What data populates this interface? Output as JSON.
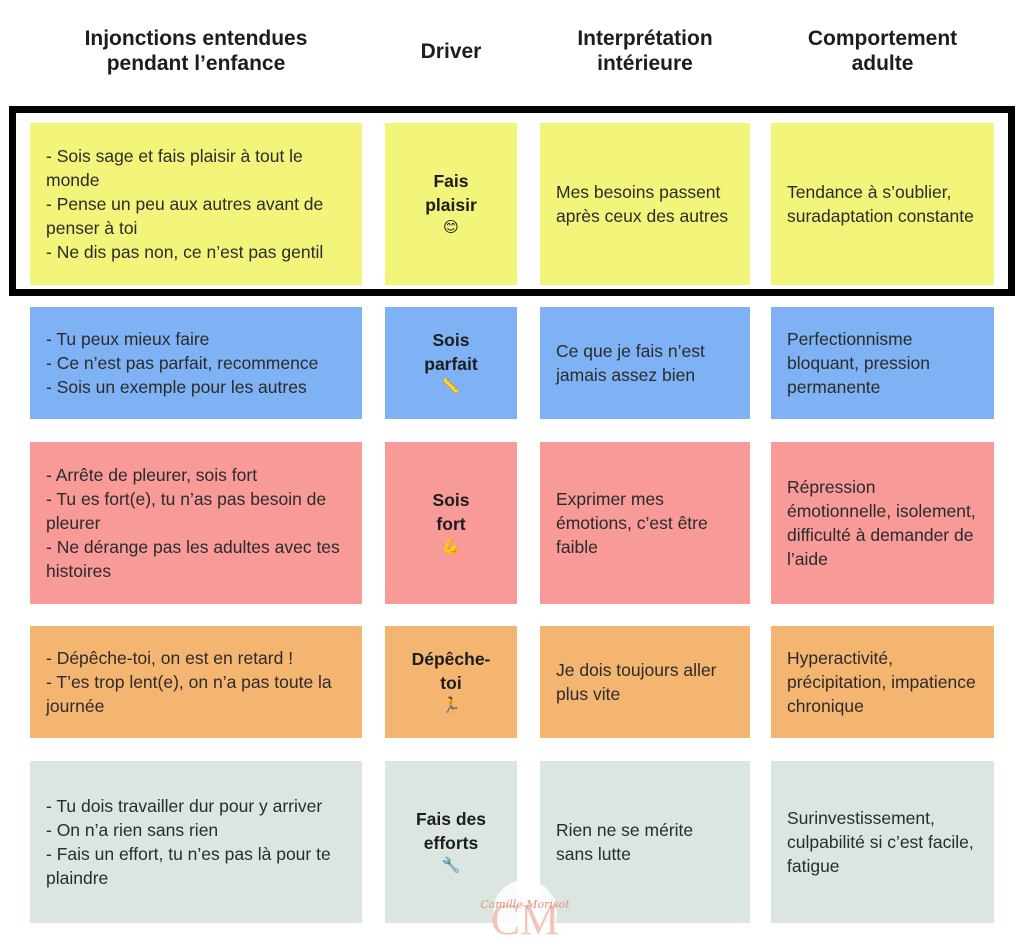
{
  "headers": [
    "Injonctions entendues\npendant l’enfance",
    "Driver",
    "Interprétation\nintérieure",
    "Comportement\nadulte"
  ],
  "rows": [
    {
      "color": "#f2f57a",
      "injunctions": "- Sois sage et fais plaisir à tout le monde\n- Pense un peu aux autres avant de penser à toi\n- Ne dis pas non, ce n’est pas gentil",
      "driver": "Fais\nplaisir",
      "driver_icon": "😊",
      "interpretation": "Mes besoins passent après ceux des autres",
      "behavior": "Tendance à s’oublier, suradaptation constante"
    },
    {
      "color": "#7fb2f5",
      "injunctions": "- Tu peux mieux faire\n- Ce n’est pas parfait, recommence\n- Sois un exemple pour les autres",
      "driver": "Sois\nparfait",
      "driver_icon": "📏",
      "interpretation": "Ce que je fais n’est jamais assez bien",
      "behavior": "Perfectionnisme bloquant, pression permanente"
    },
    {
      "color": "#f79a98",
      "injunctions": "- Arrête de pleurer, sois fort\n- Tu es fort(e), tu n’as pas besoin de pleurer\n- Ne dérange pas les adultes avec tes histoires",
      "driver": "Sois\nfort",
      "driver_icon": "💪",
      "interpretation": "Exprimer mes émotions, c’est être faible",
      "behavior": "Répression émotionnelle, isolement, difficulté à demander de l’aide"
    },
    {
      "color": "#f4b571",
      "injunctions": "- Dépêche-toi, on est en retard !\n- T’es trop lent(e), on n’a pas toute la journée",
      "driver": "Dépêche-\ntoi",
      "driver_icon": "🏃",
      "interpretation": "Je dois toujours aller plus vite",
      "behavior": "Hyperactivité, précipitation, impatience chronique"
    },
    {
      "color": "#dbe6e1",
      "injunctions": "- Tu dois travailler dur pour y arriver\n- On n’a rien sans rien\n- Fais un effort, tu n’es pas là pour te plaindre",
      "driver": "Fais des\nefforts",
      "driver_icon": "🔧",
      "interpretation": "Rien ne se mérite sans lutte",
      "behavior": "Surinvestissement, culpabilité si c’est facile, fatigue"
    }
  ],
  "watermark": {
    "text": "Camille Morisot",
    "monogram": "CM",
    "color": "#f2b6ab"
  }
}
